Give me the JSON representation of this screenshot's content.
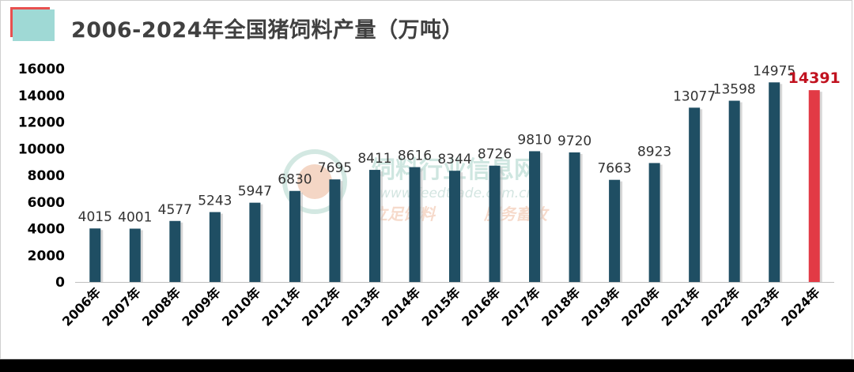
{
  "title": "2006-2024年全国猪饲料产量（万吨）",
  "watermark": {
    "name": "饲料行业信息网",
    "url": "www.feedtrade.com.cn",
    "slogan_left": "立足饲料",
    "slogan_right": "服务畜牧"
  },
  "colors": {
    "bar": "#1f4e63",
    "bar_highlight": "#e23a45",
    "highlight_label": "#c1121f",
    "title_accent": "#9fd9d5",
    "title_line": "#e8504f"
  },
  "chart_data": {
    "type": "bar",
    "title": "2006-2024年全国猪饲料产量（万吨）",
    "xlabel": "",
    "ylabel": "",
    "categories": [
      "2006年",
      "2007年",
      "2008年",
      "2009年",
      "2010年",
      "2011年",
      "2012年",
      "2013年",
      "2014年",
      "2015年",
      "2016年",
      "2017年",
      "2018年",
      "2019年",
      "2020年",
      "2021年",
      "2022年",
      "2023年",
      "2024年"
    ],
    "values": [
      4015,
      4001,
      4577,
      5243,
      5947,
      6830,
      7695,
      8411,
      8616,
      8344,
      8726,
      9810,
      9720,
      7663,
      8923,
      13077,
      13598,
      14975,
      14391
    ],
    "data_labels": [
      "4015",
      "4001",
      "4577",
      "5243",
      "5947",
      "6830",
      "7695",
      "8411",
      "8616",
      "8344",
      "8726",
      "9810",
      "9720",
      "7663",
      "8923",
      "13077",
      "13598",
      "14975",
      "14391"
    ],
    "highlight_index": 18,
    "ylim": [
      0,
      16000
    ],
    "yticks": [
      "0",
      "2000",
      "4000",
      "6000",
      "8000",
      "10000",
      "12000",
      "14000",
      "16000"
    ],
    "grid": false,
    "legend": "none"
  }
}
